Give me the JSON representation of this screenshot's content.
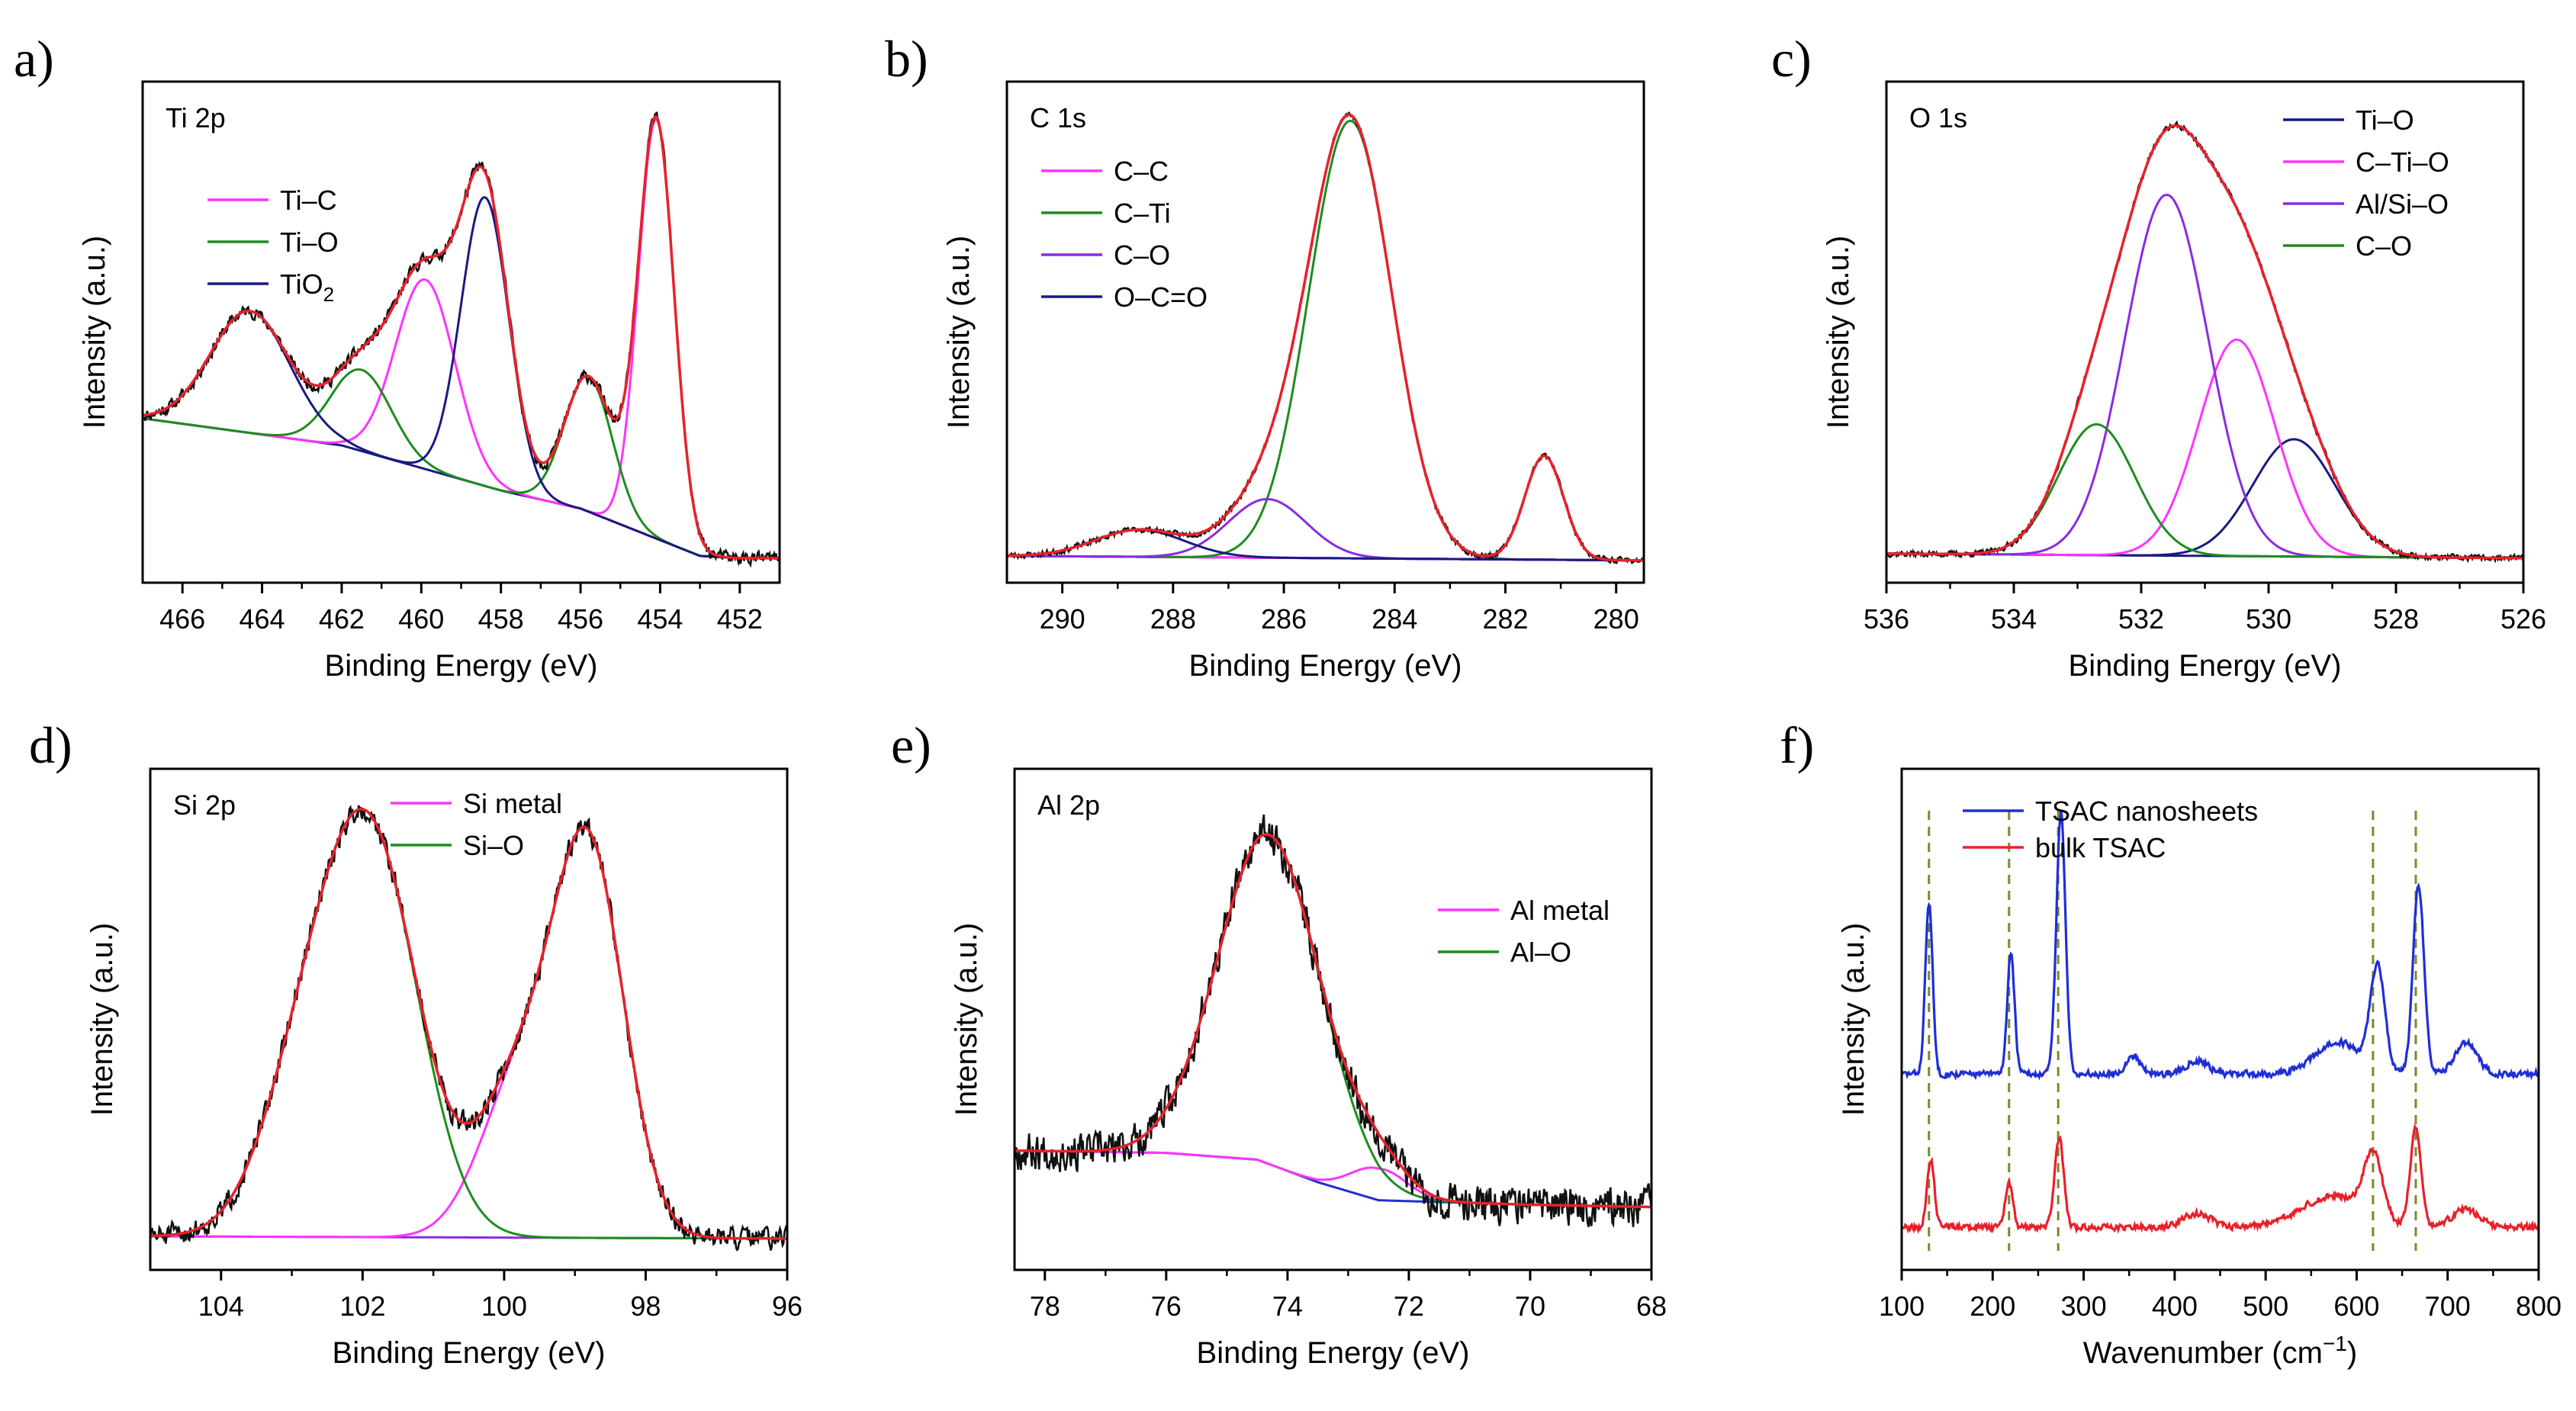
{
  "colors": {
    "black": "#000000",
    "magenta": "#ff33ff",
    "green": "#1e8c1e",
    "navy": "#1a1a80",
    "purple": "#8a2be2",
    "red": "#e8212b",
    "blue": "#1f2fd6",
    "olive": "#7a8a28",
    "raw": "#111111",
    "fit": "#e8212b",
    "background_line": "#1a1a80"
  },
  "chart_data": [
    {
      "type": "line",
      "panel_label": "a)",
      "title": "Ti 2p",
      "xlabel": "Binding Energy (eV)",
      "ylabel": "Intensity (a.u.)",
      "xlim": [
        467,
        451
      ],
      "ylim": [
        0,
        100
      ],
      "x_ticks": [
        "466",
        "464",
        "462",
        "460",
        "458",
        "456",
        "454",
        "452"
      ],
      "x_tick_values": [
        466,
        464,
        462,
        460,
        458,
        456,
        454,
        452
      ],
      "legend": {
        "position": "top-left",
        "entries": [
          {
            "name": "Ti–C",
            "color": "#ff33ff"
          },
          {
            "name": "Ti–O",
            "color": "#1e8c1e"
          },
          {
            "name": "TiO",
            "sub": "2",
            "color": "#1a1a80"
          }
        ]
      },
      "baseline": {
        "x": [
          467,
          462,
          458,
          456,
          454,
          453,
          452
        ],
        "y": [
          32,
          26,
          16,
          12,
          5,
          1.5,
          1
        ],
        "color": "#1a1a80"
      },
      "series": [
        {
          "name": "Ti–C",
          "color": "#ff33ff",
          "peaks": [
            {
              "center": 454.1,
              "height": 93,
              "width": 0.45
            },
            {
              "center": 459.9,
              "height": 42,
              "width": 0.75
            }
          ]
        },
        {
          "name": "Ti–O",
          "color": "#1e8c1e",
          "peaks": [
            {
              "center": 455.8,
              "height": 30,
              "width": 0.6
            },
            {
              "center": 461.5,
              "height": 18,
              "width": 0.75
            }
          ]
        },
        {
          "name": "TiO2",
          "color": "#1a1a80",
          "peaks": [
            {
              "center": 458.4,
              "height": 64,
              "width": 0.6
            },
            {
              "center": 464.3,
              "height": 27,
              "width": 1.0
            }
          ]
        }
      ],
      "noise": 2.0,
      "seed": 11
    },
    {
      "type": "line",
      "panel_label": "b)",
      "title": "C 1s",
      "xlabel": "Binding Energy (eV)",
      "ylabel": "Intensity (a.u.)",
      "xlim": [
        291,
        279.5
      ],
      "ylim": [
        0,
        100
      ],
      "x_ticks": [
        "290",
        "288",
        "286",
        "284",
        "282",
        "280"
      ],
      "x_tick_values": [
        290,
        288,
        286,
        284,
        282,
        280
      ],
      "legend": {
        "position": "top-left",
        "entries": [
          {
            "name": "C–C",
            "color": "#ff33ff"
          },
          {
            "name": "C–Ti",
            "color": "#1e8c1e"
          },
          {
            "name": "C–O",
            "color": "#8a2be2"
          },
          {
            "name": "O–C=O",
            "color": "#1a1a80"
          }
        ]
      },
      "baseline": {
        "x": [
          291,
          279.5
        ],
        "y": [
          1.5,
          0.5
        ],
        "color": "#1a1a80"
      },
      "series": [
        {
          "name": "C–C",
          "color": "#ff33ff",
          "peaks": [
            {
              "center": 281.3,
              "height": 23,
              "width": 0.35
            }
          ]
        },
        {
          "name": "C–Ti",
          "color": "#1e8c1e",
          "peaks": [
            {
              "center": 284.8,
              "height": 97,
              "width": 0.75
            }
          ]
        },
        {
          "name": "C–O",
          "color": "#8a2be2",
          "peaks": [
            {
              "center": 286.3,
              "height": 13,
              "width": 0.7
            }
          ]
        },
        {
          "name": "O–C=O",
          "color": "#1a1a80",
          "peaks": [
            {
              "center": 288.6,
              "height": 6,
              "width": 0.8
            }
          ]
        }
      ],
      "noise": 0.9,
      "seed": 23
    },
    {
      "type": "line",
      "panel_label": "c)",
      "title": "O 1s",
      "xlabel": "Binding Energy (eV)",
      "ylabel": "Intensity (a.u.)",
      "xlim": [
        536,
        526
      ],
      "ylim": [
        0,
        100
      ],
      "x_ticks": [
        "536",
        "534",
        "532",
        "530",
        "528",
        "526"
      ],
      "x_tick_values": [
        536,
        534,
        532,
        530,
        528,
        526
      ],
      "legend": {
        "position": "top-right",
        "entries": [
          {
            "name": "Ti–O",
            "color": "#1a1a80"
          },
          {
            "name": "C–Ti–O",
            "color": "#ff33ff"
          },
          {
            "name": "Al/Si–O",
            "color": "#8a2be2"
          },
          {
            "name": "C–O",
            "color": "#1e8c1e"
          }
        ]
      },
      "baseline": {
        "x": [
          536,
          526
        ],
        "y": [
          2,
          1
        ],
        "color": "#1a1a80"
      },
      "series": [
        {
          "name": "Ti–O",
          "color": "#1a1a80",
          "peaks": [
            {
              "center": 529.6,
              "height": 26,
              "width": 0.65
            }
          ]
        },
        {
          "name": "C–Ti–O",
          "color": "#ff33ff",
          "peaks": [
            {
              "center": 530.5,
              "height": 48,
              "width": 0.6
            }
          ]
        },
        {
          "name": "Al/Si–O",
          "color": "#8a2be2",
          "peaks": [
            {
              "center": 531.6,
              "height": 80,
              "width": 0.65
            }
          ]
        },
        {
          "name": "C–O",
          "color": "#1e8c1e",
          "peaks": [
            {
              "center": 532.7,
              "height": 29,
              "width": 0.6
            }
          ]
        }
      ],
      "noise": 0.9,
      "seed": 37
    },
    {
      "type": "line",
      "panel_label": "d)",
      "title": "Si 2p",
      "xlabel": "Binding Energy (eV)",
      "ylabel": "Intensity (a.u.)",
      "xlim": [
        105,
        96
      ],
      "ylim": [
        0,
        100
      ],
      "x_ticks": [
        "104",
        "102",
        "100",
        "98",
        "96"
      ],
      "x_tick_values": [
        104,
        102,
        100,
        98,
        96
      ],
      "legend": {
        "position": "top-center",
        "entries": [
          {
            "name": "Si metal",
            "color": "#ff33ff"
          },
          {
            "name": "Si–O",
            "color": "#1e8c1e"
          }
        ]
      },
      "baseline": {
        "x": [
          105,
          96
        ],
        "y": [
          3,
          2.5
        ],
        "color": "#8a2be2"
      },
      "series": [
        {
          "name": "Si metal",
          "color": "#ff33ff",
          "peaks": [
            {
              "center": 98.8,
              "height": 84,
              "width": 0.5
            },
            {
              "center": 99.8,
              "height": 33,
              "width": 0.55
            }
          ]
        },
        {
          "name": "Si–O",
          "color": "#1e8c1e",
          "peaks": [
            {
              "center": 101.8,
              "height": 76,
              "width": 0.65
            },
            {
              "center": 102.7,
              "height": 40,
              "width": 0.65
            }
          ]
        }
      ],
      "noise": 3.5,
      "seed": 51
    },
    {
      "type": "line",
      "panel_label": "e)",
      "title": "Al 2p",
      "xlabel": "Binding Energy (eV)",
      "ylabel": "Intensity (a.u.)",
      "xlim": [
        78.5,
        68
      ],
      "ylim": [
        0,
        100
      ],
      "x_ticks": [
        "78",
        "76",
        "74",
        "72",
        "70",
        "68"
      ],
      "x_tick_values": [
        78,
        76,
        74,
        72,
        70,
        68
      ],
      "legend": {
        "position": "right",
        "entries": [
          {
            "name": "Al metal",
            "color": "#ff33ff"
          },
          {
            "name": "Al–O",
            "color": "#1e8c1e"
          }
        ]
      },
      "baseline": {
        "x": [
          78.5,
          76,
          74.5,
          73.5,
          72.5,
          70,
          68
        ],
        "y": [
          22,
          21.5,
          20,
          15,
          11,
          10,
          9.5
        ],
        "color": "#1f2fd6"
      },
      "series": [
        {
          "name": "Al metal",
          "color": "#ff33ff",
          "peaks": [
            {
              "center": 72.5,
              "height": 7,
              "width": 0.45
            }
          ]
        },
        {
          "name": "Al–O",
          "color": "#1e8c1e",
          "peaks": [
            {
              "center": 74.3,
              "height": 73,
              "width": 0.85
            }
          ]
        }
      ],
      "noise": 6.0,
      "seed": 67
    },
    {
      "type": "line",
      "panel_label": "f)",
      "title": "",
      "xlabel": "Wavenumber (cm",
      "xlabel_sup": "−1",
      "xlabel_end": ")",
      "ylabel": "Intensity (a.u.)",
      "xlim": [
        100,
        800
      ],
      "ylim": [
        0,
        100
      ],
      "x_ticks": [
        "100",
        "200",
        "300",
        "400",
        "500",
        "600",
        "700",
        "800"
      ],
      "x_tick_values": [
        100,
        200,
        300,
        400,
        500,
        600,
        700,
        800
      ],
      "legend": {
        "position": "top",
        "entries": [
          {
            "name": "TSAC nanosheets",
            "color": "#1f2fd6"
          },
          {
            "name": "bulk TSAC",
            "color": "#e8212b"
          }
        ]
      },
      "reference_lines": [
        130,
        218,
        272,
        618,
        665
      ],
      "series": [
        {
          "name": "TSAC nanosheets",
          "color": "#1f2fd6",
          "offset": 37,
          "baseline": 2,
          "peaks": [
            {
              "center": 130,
              "height": 38,
              "width": 4
            },
            {
              "center": 220,
              "height": 27,
              "width": 4
            },
            {
              "center": 275,
              "height": 58,
              "width": 5
            },
            {
              "center": 623,
              "height": 23,
              "width": 8
            },
            {
              "center": 668,
              "height": 42,
              "width": 6
            },
            {
              "center": 355,
              "height": 4,
              "width": 8
            },
            {
              "center": 425,
              "height": 3,
              "width": 12
            },
            {
              "center": 720,
              "height": 7,
              "width": 12
            },
            {
              "center": 580,
              "height": 7,
              "width": 25
            }
          ]
        },
        {
          "name": "bulk TSAC",
          "color": "#e8212b",
          "offset": 4,
          "baseline": 1,
          "peaks": [
            {
              "center": 132,
              "height": 15,
              "width": 4
            },
            {
              "center": 218,
              "height": 10,
              "width": 4
            },
            {
              "center": 273,
              "height": 20,
              "width": 5
            },
            {
              "center": 618,
              "height": 14,
              "width": 10
            },
            {
              "center": 665,
              "height": 22,
              "width": 6
            },
            {
              "center": 425,
              "height": 3,
              "width": 15
            },
            {
              "center": 575,
              "height": 7,
              "width": 35
            },
            {
              "center": 720,
              "height": 4,
              "width": 15
            }
          ]
        }
      ],
      "noise": 0.9,
      "seed": 83
    }
  ]
}
